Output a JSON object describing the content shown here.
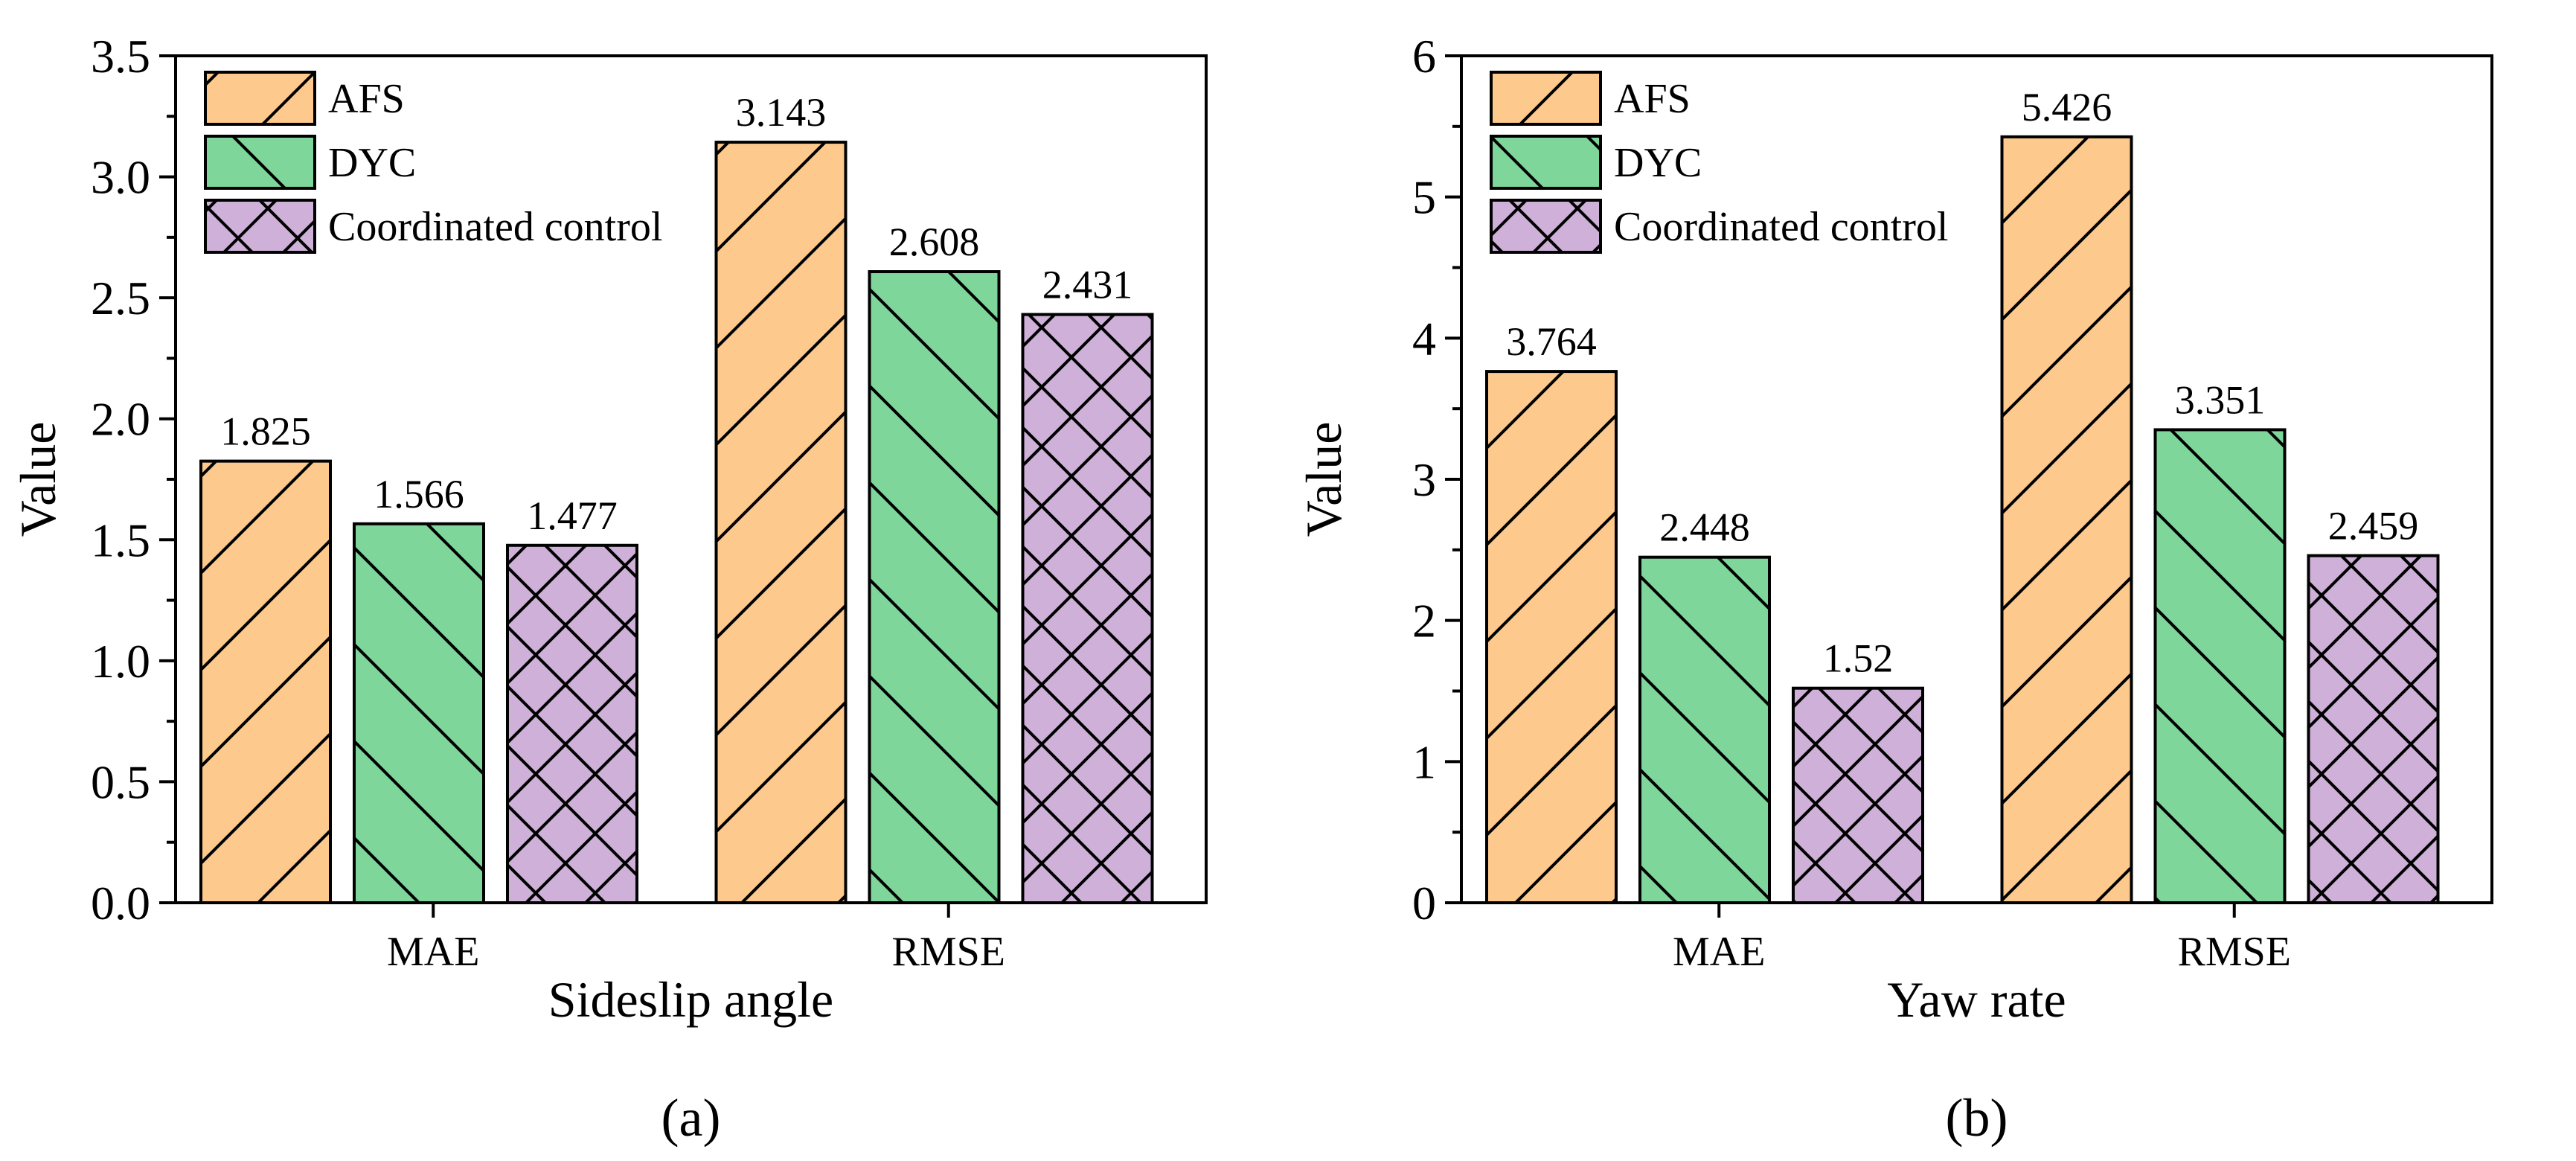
{
  "chart_data": [
    {
      "type": "bar",
      "panel_label": "(a)",
      "categories": [
        "MAE",
        "RMSE"
      ],
      "series": [
        {
          "name": "AFS",
          "values": [
            1.825,
            3.143
          ],
          "labels": [
            "1.825",
            "3.143"
          ],
          "color": "#FDC98C",
          "hatch": "forward"
        },
        {
          "name": "DYC",
          "values": [
            1.566,
            2.608
          ],
          "labels": [
            "1.566",
            "2.608"
          ],
          "color": "#7ED69A",
          "hatch": "backward"
        },
        {
          "name": "Coordinated control",
          "values": [
            1.477,
            2.431
          ],
          "labels": [
            "1.477",
            "2.431"
          ],
          "color": "#CEB0D8",
          "hatch": "cross"
        }
      ],
      "xlabel": "Sideslip angle",
      "ylabel": "Value",
      "ylim": [
        0,
        3.5
      ],
      "yticks": [
        0,
        0.5,
        1.0,
        1.5,
        2.0,
        2.5,
        3.0,
        3.5
      ],
      "ytick_labels": [
        "0.0",
        "0.5",
        "1.0",
        "1.5",
        "2.0",
        "2.5",
        "3.0",
        "3.5"
      ],
      "legend": "top-left"
    },
    {
      "type": "bar",
      "panel_label": "(b)",
      "categories": [
        "MAE",
        "RMSE"
      ],
      "series": [
        {
          "name": "AFS",
          "values": [
            3.764,
            5.426
          ],
          "labels": [
            "3.764",
            "5.426"
          ],
          "color": "#FDC98C",
          "hatch": "forward"
        },
        {
          "name": "DYC",
          "values": [
            2.448,
            3.351
          ],
          "labels": [
            "2.448",
            "3.351"
          ],
          "color": "#7ED69A",
          "hatch": "backward"
        },
        {
          "name": "Coordinated control",
          "values": [
            1.52,
            2.459
          ],
          "labels": [
            "1.52",
            "2.459"
          ],
          "color": "#CEB0D8",
          "hatch": "cross"
        }
      ],
      "xlabel": "Yaw rate",
      "ylabel": "Value",
      "ylim": [
        0,
        6
      ],
      "yticks": [
        0,
        1,
        2,
        3,
        4,
        5,
        6
      ],
      "ytick_labels": [
        "0",
        "1",
        "2",
        "3",
        "4",
        "5",
        "6"
      ],
      "legend": "top-left"
    }
  ]
}
